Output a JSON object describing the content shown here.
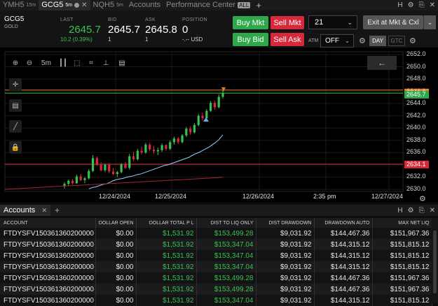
{
  "tabs": [
    {
      "label": "YMH5",
      "sup": "15m",
      "active": false
    },
    {
      "label": "GCG5",
      "sup": "5m",
      "active": true
    },
    {
      "label": "NQH5",
      "sup": "5m",
      "active": false
    },
    {
      "label": "Accounts",
      "sup": "",
      "active": false
    },
    {
      "label": "Performance Center",
      "sup": "",
      "active": false
    }
  ],
  "tab_badge": "ALL",
  "window_controls": [
    "H",
    "⚙",
    "⎘",
    "✕"
  ],
  "quote": {
    "symbol": "GCG5",
    "symbol_sub": "GOLD",
    "last_label": "LAST",
    "last": "2645.7",
    "change": "10.2 (0.39%)",
    "bid_label": "BID",
    "bid": "2645.7",
    "bid_size": "1",
    "ask_label": "ASK",
    "ask": "2645.8",
    "ask_size": "1",
    "pos_label": "POSITION",
    "position": "0",
    "position_sub": "-.-- USD"
  },
  "order": {
    "buy_mkt": "Buy Mkt",
    "sell_mkt": "Sell Mkt",
    "buy_bid": "Buy Bid",
    "sell_ask": "Sell Ask",
    "quantity": "21",
    "exit_label": "Exit at Mkt & Cxl",
    "atm_label": "ATM",
    "atm_value": "OFF",
    "day": "DAY",
    "gtc": "GTC"
  },
  "colors": {
    "green": "#39c24b",
    "red": "#d8293a",
    "orange": "#e67e22",
    "cyan": "#8fd3ff"
  },
  "chart_data": {
    "type": "candlestick",
    "y_ticks": [
      "2652.0",
      "2650.0",
      "2648.0",
      "2646.0",
      "2644.0",
      "2642.0",
      "2640.0",
      "2638.0",
      "2636.0",
      "2634.0",
      "2632.0",
      "2630.0"
    ],
    "ylim": [
      2630.0,
      2652.0
    ],
    "x_ticks": [
      "12/24/2024",
      "12/25/2024",
      "12/26/2024",
      "2:35 pm",
      "12/27/2024"
    ],
    "price_labels": {
      "last": "2645.7",
      "orange": "2646.2",
      "red": "2634.1"
    },
    "levels": {
      "green": 2645.7,
      "orange": 2646.2,
      "red": 2634.1
    },
    "candles": [
      [
        2630.5,
        2631.2,
        2630.1,
        2630.9
      ],
      [
        2630.9,
        2631.6,
        2630.6,
        2631.4
      ],
      [
        2631.4,
        2631.7,
        2630.8,
        2631.0
      ],
      [
        2631.0,
        2632.4,
        2630.9,
        2632.1
      ],
      [
        2632.1,
        2632.5,
        2631.3,
        2631.5
      ],
      [
        2631.5,
        2632.0,
        2631.0,
        2631.8
      ],
      [
        2631.8,
        2633.3,
        2631.6,
        2633.0
      ],
      [
        2633.0,
        2635.6,
        2632.8,
        2635.1
      ],
      [
        2635.1,
        2635.4,
        2633.8,
        2634.0
      ],
      [
        2634.0,
        2634.4,
        2632.9,
        2633.1
      ],
      [
        2633.1,
        2634.2,
        2632.8,
        2634.0
      ],
      [
        2634.0,
        2634.3,
        2632.6,
        2632.9
      ],
      [
        2632.9,
        2633.5,
        2632.3,
        2632.5
      ],
      [
        2632.5,
        2633.0,
        2632.0,
        2632.8
      ],
      [
        2632.8,
        2634.3,
        2632.6,
        2634.1
      ],
      [
        2634.1,
        2634.5,
        2633.3,
        2633.5
      ],
      [
        2633.5,
        2635.8,
        2633.2,
        2635.4
      ],
      [
        2635.4,
        2636.1,
        2634.6,
        2634.9
      ],
      [
        2634.9,
        2636.6,
        2634.7,
        2636.3
      ],
      [
        2636.3,
        2637.0,
        2635.7,
        2636.0
      ],
      [
        2636.0,
        2637.6,
        2635.8,
        2637.3
      ],
      [
        2637.3,
        2637.6,
        2636.2,
        2636.5
      ],
      [
        2636.5,
        2637.1,
        2635.8,
        2636.2
      ],
      [
        2636.2,
        2636.8,
        2635.6,
        2636.4
      ],
      [
        2636.4,
        2637.5,
        2636.1,
        2637.2
      ],
      [
        2637.2,
        2637.4,
        2636.3,
        2636.6
      ],
      [
        2636.6,
        2638.0,
        2636.4,
        2637.7
      ],
      [
        2637.7,
        2638.6,
        2637.3,
        2638.3
      ],
      [
        2638.3,
        2638.5,
        2637.4,
        2637.7
      ],
      [
        2637.7,
        2639.0,
        2637.5,
        2638.8
      ],
      [
        2638.8,
        2640.2,
        2638.5,
        2639.9
      ],
      [
        2639.9,
        2640.3,
        2638.9,
        2639.3
      ],
      [
        2639.3,
        2640.8,
        2639.1,
        2640.5
      ],
      [
        2640.5,
        2642.3,
        2640.3,
        2642.0
      ],
      [
        2642.0,
        2642.5,
        2641.2,
        2641.6
      ],
      [
        2641.6,
        2643.1,
        2641.4,
        2642.8
      ],
      [
        2642.8,
        2644.4,
        2642.6,
        2644.1
      ],
      [
        2644.1,
        2644.5,
        2643.0,
        2643.4
      ],
      [
        2643.4,
        2645.5,
        2643.2,
        2645.1
      ],
      [
        2645.1,
        2646.5,
        2644.8,
        2645.7
      ]
    ],
    "ema_fast": [
      2630.1,
      2630.3,
      2630.4,
      2630.6,
      2630.8,
      2630.9,
      2631.1,
      2631.4,
      2631.6,
      2631.7,
      2631.8,
      2632.0,
      2632.1,
      2632.2,
      2632.4,
      2632.5,
      2632.7,
      2632.9,
      2633.1,
      2633.3,
      2633.5,
      2633.7,
      2633.9,
      2634.0,
      2634.2,
      2634.4,
      2634.6,
      2634.8,
      2635.0,
      2635.2,
      2635.5,
      2635.8,
      2636.0,
      2636.3,
      2636.6,
      2636.9,
      2637.3,
      2637.7,
      2638.2,
      2638.9
    ],
    "ema_slow": [
      2630.0,
      2630.05,
      2630.1,
      2630.15,
      2630.2,
      2630.25,
      2630.3,
      2630.35,
      2630.4,
      2630.45,
      2630.5,
      2630.55,
      2630.6,
      2630.65,
      2630.7,
      2630.75,
      2630.8,
      2630.85,
      2630.9,
      2630.95,
      2631.0,
      2631.05,
      2631.1,
      2631.15,
      2631.2,
      2631.25,
      2631.3,
      2631.35,
      2631.4,
      2631.45,
      2631.5,
      2631.55,
      2631.6,
      2631.65,
      2631.7,
      2631.75,
      2631.8,
      2631.85,
      2631.9,
      2632.0
    ],
    "grid": true
  },
  "chart_tools": {
    "interval": "5m"
  },
  "accounts": {
    "tab_label": "Accounts",
    "columns": [
      "ACCOUNT",
      "DOLLAR OPEN",
      "DOLLAR TOTAL P L",
      "DIST TO LIQ ONLY",
      "DIST DRAWDOWN",
      "DRAWDOWN AUTO",
      "MAX NET LIQ"
    ],
    "rows": [
      [
        "FTDYSFV150361360200000",
        "$0.00",
        "$1,531.92",
        "$153,499.28",
        "$9,031.92",
        "$144,467.36",
        "$151,967.36"
      ],
      [
        "FTDYSFV150361360200000",
        "$0.00",
        "$1,531.92",
        "$153,347.04",
        "$9,031.92",
        "$144,315.12",
        "$151,815.12"
      ],
      [
        "FTDYSFV150361360200000",
        "$0.00",
        "$1,531.92",
        "$153,347.04",
        "$9,031.92",
        "$144,315.12",
        "$151,815.12"
      ],
      [
        "FTDYSFV150361360200000",
        "$0.00",
        "$1,531.92",
        "$153,347.04",
        "$9,031.92",
        "$144,315.12",
        "$151,815.12"
      ],
      [
        "FTDYSFV150361360200000",
        "$0.00",
        "$1,531.92",
        "$153,499.28",
        "$9,031.92",
        "$144,467.36",
        "$151,967.36"
      ],
      [
        "FTDYSFV150361360200000",
        "$0.00",
        "$1,531.92",
        "$153,499.28",
        "$9,031.92",
        "$144,467.36",
        "$151,967.36"
      ],
      [
        "FTDYSFV150361360200000",
        "$0.00",
        "$1,531.92",
        "$153,347.04",
        "$9,031.92",
        "$144,315.12",
        "$151,815.12"
      ]
    ]
  }
}
